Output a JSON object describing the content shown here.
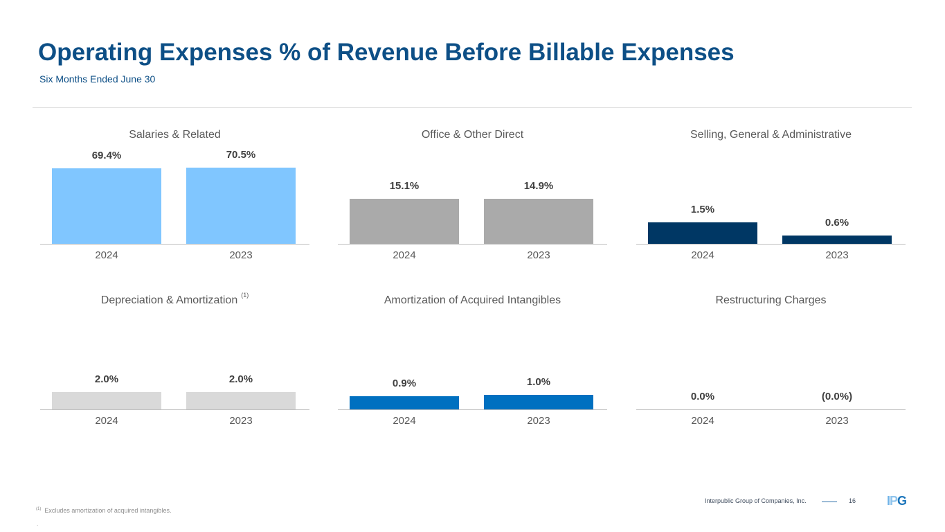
{
  "header": {
    "title": "Operating Expenses % of Revenue Before Billable Expenses",
    "subtitle": "Six Months Ended June 30"
  },
  "chart_data": [
    {
      "type": "bar",
      "title": "Salaries & Related",
      "categories": [
        "2024",
        "2023"
      ],
      "values": [
        69.4,
        70.5
      ],
      "labels": [
        "69.4%",
        "70.5%"
      ],
      "color": "#80c6ff",
      "ylim": [
        0,
        83
      ]
    },
    {
      "type": "bar",
      "title": "Office & Other Direct",
      "categories": [
        "2024",
        "2023"
      ],
      "values": [
        15.1,
        14.9
      ],
      "labels": [
        "15.1%",
        "14.9%"
      ],
      "color": "#aaaaaa",
      "ylim": [
        0,
        30
      ]
    },
    {
      "type": "bar",
      "title": "Selling, General & Administrative",
      "categories": [
        "2024",
        "2023"
      ],
      "values": [
        1.5,
        0.6
      ],
      "labels": [
        "1.5%",
        "0.6%"
      ],
      "color": "#003764",
      "ylim": [
        0,
        6.3
      ]
    },
    {
      "type": "bar",
      "title": "Depreciation & Amortization",
      "footnote_ref": "(1)",
      "categories": [
        "2024",
        "2023"
      ],
      "values": [
        2.0,
        2.0
      ],
      "labels": [
        "2.0%",
        "2.0%"
      ],
      "color": "#d9d9d9",
      "ylim": [
        0,
        10.4
      ]
    },
    {
      "type": "bar",
      "title": "Amortization of Acquired Intangibles",
      "categories": [
        "2024",
        "2023"
      ],
      "values": [
        0.9,
        1.0
      ],
      "labels": [
        "0.9%",
        "1.0%"
      ],
      "color": "#0070c0",
      "ylim": [
        0,
        6.2
      ]
    },
    {
      "type": "bar",
      "title": "Restructuring Charges",
      "categories": [
        "2024",
        "2023"
      ],
      "values": [
        0.0,
        0.0
      ],
      "labels": [
        "0.0%",
        "(0.0%)"
      ],
      "color": "#0070c0",
      "ylim": [
        0,
        6.2
      ]
    }
  ],
  "footer": {
    "footnote_mark": "(1)",
    "footnote": "Excludes amortization of acquired intangibles.",
    "dot": ".",
    "company": "Interpublic Group of Companies, Inc.",
    "page": "16",
    "logo": "IPG"
  }
}
